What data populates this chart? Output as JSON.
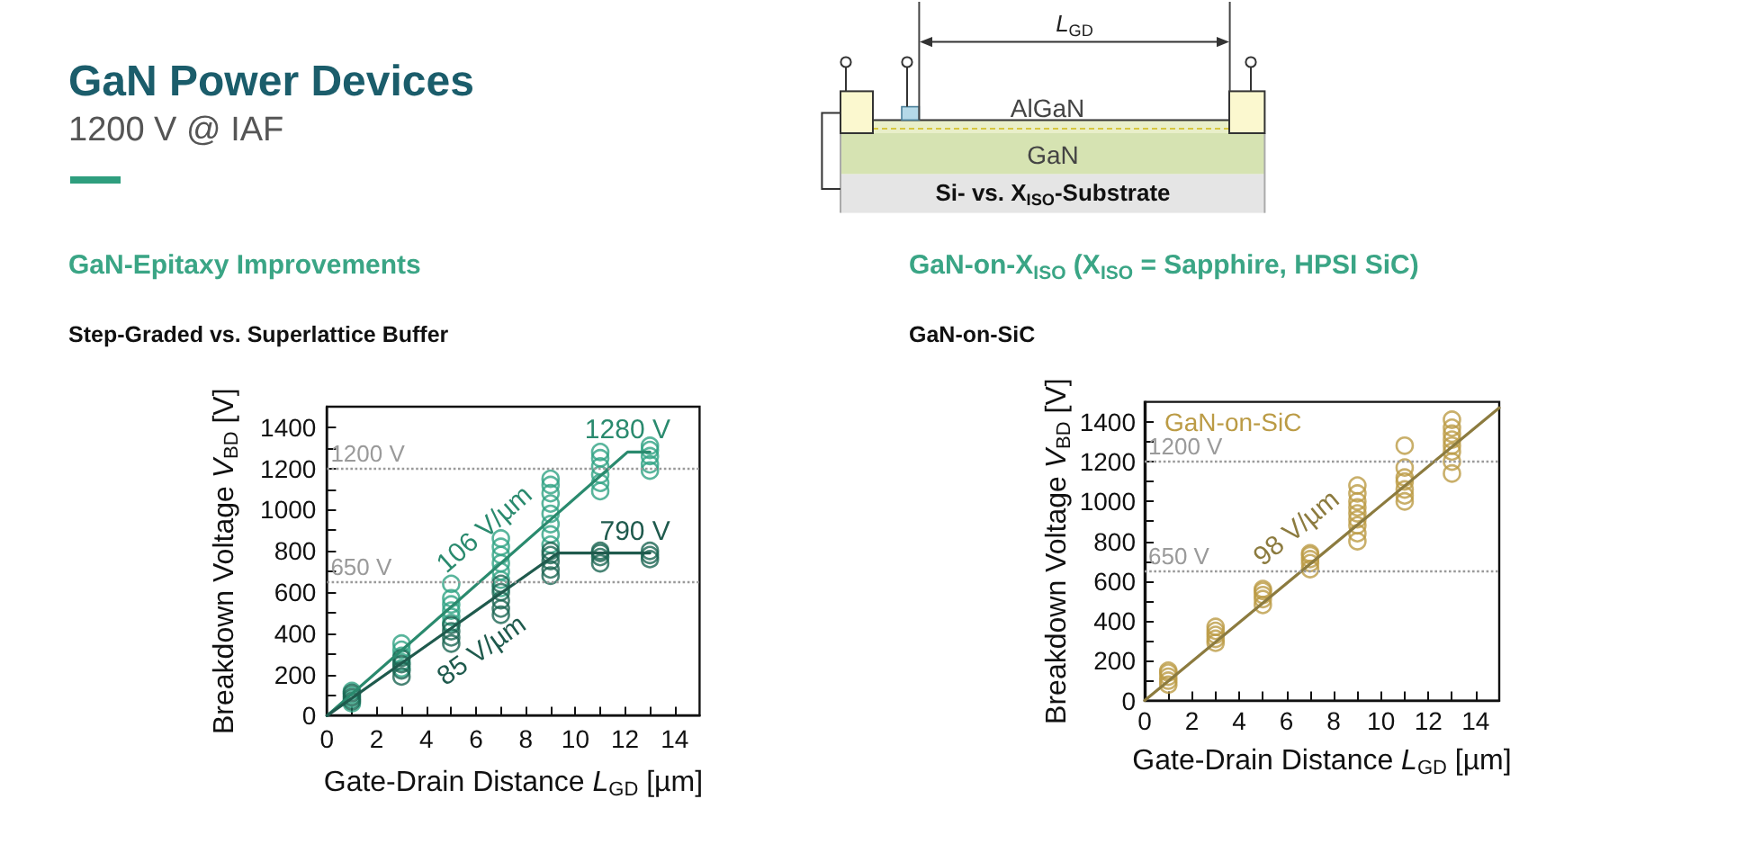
{
  "chart_data": [
    {
      "type": "other",
      "title": "GaN Power Devices",
      "subtitle": "1200 V @ IAF",
      "annotations": [
        "L$_{GD}$",
        "AlGaN",
        "GaN",
        "Si- vs. X$_{ISO}$-Substrate"
      ]
    },
    {
      "type": "scatter",
      "title": "GaN-Epitaxy Improvements",
      "subtitle": "Step-Graded vs. Superlattice Buffer",
      "xlabel": "Gate-Drain Distance L$_{GD}$ [µm]",
      "ylabel": "Breakdown Voltage V$_{BD}$ [V]",
      "xlim": [
        0,
        15
      ],
      "ylim": [
        0,
        1500
      ],
      "xticks": [
        0,
        {
          "value": 1,
          "label": null
        },
        2,
        {
          "value": 3,
          "label": null
        },
        4,
        {
          "value": 5,
          "label": null
        },
        6,
        {
          "value": 7,
          "label": null
        },
        8,
        {
          "value": 9,
          "label": null
        },
        10,
        {
          "value": 11,
          "label": null
        },
        12,
        {
          "value": 13,
          "label": null
        },
        14
      ],
      "yticks": [
        0,
        {
          "value": 100,
          "label": null
        },
        200,
        {
          "value": 300,
          "label": null
        },
        400,
        {
          "value": 500,
          "label": null
        },
        600,
        {
          "value": 700,
          "label": null
        },
        800,
        {
          "value": 900,
          "label": null
        },
        1000,
        {
          "value": 1100,
          "label": null
        },
        1200,
        {
          "value": 1300,
          "label": null
        },
        1400
      ],
      "marker": "circle",
      "series": [
        {
          "color": "#2fa383",
          "x": [
            1,
            1,
            1,
            1,
            3,
            3,
            3,
            3,
            3,
            5,
            5,
            5,
            5,
            5,
            5,
            7,
            7,
            7,
            7,
            7,
            7,
            7,
            9,
            9,
            9,
            9,
            9,
            9,
            9,
            9,
            11,
            11,
            11,
            11,
            11,
            11,
            13,
            13,
            13,
            13,
            13
          ],
          "values": [
            60,
            80,
            100,
            120,
            230,
            260,
            290,
            320,
            350,
            450,
            480,
            510,
            540,
            570,
            640,
            620,
            660,
            700,
            740,
            780,
            820,
            860,
            830,
            880,
            930,
            980,
            1030,
            1080,
            1120,
            1150,
            1090,
            1130,
            1170,
            1210,
            1250,
            1280,
            1190,
            1220,
            1260,
            1290,
            1310
          ]
        },
        {
          "color": "#1c6553",
          "x": [
            1,
            1,
            1,
            3,
            3,
            3,
            3,
            5,
            5,
            5,
            5,
            7,
            7,
            7,
            7,
            7,
            9,
            9,
            9,
            9,
            9,
            11,
            11,
            11,
            11,
            13,
            13,
            13
          ],
          "values": [
            70,
            90,
            110,
            190,
            220,
            250,
            280,
            350,
            380,
            410,
            440,
            490,
            520,
            560,
            600,
            640,
            680,
            710,
            750,
            780,
            800,
            740,
            770,
            790,
            800,
            760,
            780,
            800
          ]
        },
        {
          "type": "line",
          "marker": "none",
          "color": "#2a8a6e",
          "x": [
            0,
            12.1,
            13
          ],
          "values": [
            0,
            1280,
            1280
          ]
        },
        {
          "type": "line",
          "marker": "none",
          "color": "#1f5a4d",
          "x": [
            0,
            9.3,
            13
          ],
          "values": [
            0,
            790,
            790
          ]
        }
      ],
      "ref_lines": [
        {
          "axis": "y",
          "value": 1200,
          "label": "1200 V",
          "color": "#9a9a9a",
          "line_style": "dotted"
        },
        {
          "axis": "y",
          "value": 650,
          "label": "650 V",
          "color": "#9a9a9a",
          "line_style": "dotted"
        }
      ],
      "annotations": [
        {
          "text": "106 V/µm",
          "x": 7.3,
          "y": 772
        },
        {
          "text": "85 V/µm",
          "x": 5.4,
          "y": 459
        },
        {
          "text": "1280 V",
          "x": 12.1,
          "y": 1280
        },
        {
          "text": "790 V",
          "x": 12.4,
          "y": 790
        }
      ]
    },
    {
      "type": "scatter",
      "title": "GaN-on-X$_{ISO}$ (X$_{ISO}$ = Sapphire, HPSI SiC)",
      "subtitle": "GaN-on-SiC",
      "xlabel": "Gate-Drain Distance L$_{GD}$ [µm]",
      "ylabel": "Breakdown Voltage V$_{BD}$ [V]",
      "xlim": [
        0,
        15
      ],
      "ylim": [
        0,
        1500
      ],
      "xticks": [
        0,
        {
          "value": 1,
          "label": null
        },
        2,
        {
          "value": 3,
          "label": null
        },
        4,
        {
          "value": 5,
          "label": null
        },
        6,
        {
          "value": 7,
          "label": null
        },
        8,
        {
          "value": 9,
          "label": null
        },
        10,
        {
          "value": 11,
          "label": null
        },
        12,
        {
          "value": 13,
          "label": null
        },
        14
      ],
      "yticks": [
        0,
        {
          "value": 100,
          "label": null
        },
        200,
        {
          "value": 300,
          "label": null
        },
        400,
        {
          "value": 500,
          "label": null
        },
        600,
        {
          "value": 700,
          "label": null
        },
        800,
        {
          "value": 900,
          "label": null
        },
        1000,
        {
          "value": 1100,
          "label": null
        },
        1200,
        {
          "value": 1300,
          "label": null
        },
        1400
      ],
      "marker": "circle",
      "legend": "top left",
      "series": [
        {
          "name": "GaN-on-SiC",
          "color": "#bb9b45",
          "x": [
            1,
            1,
            1,
            1,
            1,
            3,
            3,
            3,
            3,
            3,
            5,
            5,
            5,
            5,
            5,
            7,
            7,
            7,
            7,
            7,
            9,
            9,
            9,
            9,
            9,
            9,
            9,
            9,
            9,
            11,
            11,
            11,
            11,
            11,
            11,
            11,
            13,
            13,
            13,
            13,
            13,
            13,
            13,
            13
          ],
          "values": [
            80,
            100,
            120,
            140,
            150,
            290,
            310,
            330,
            350,
            370,
            480,
            510,
            530,
            550,
            560,
            660,
            690,
            710,
            730,
            740,
            800,
            840,
            880,
            910,
            940,
            970,
            1000,
            1040,
            1080,
            1000,
            1030,
            1060,
            1100,
            1120,
            1170,
            1280,
            1140,
            1200,
            1250,
            1280,
            1310,
            1340,
            1370,
            1410
          ]
        },
        {
          "type": "line",
          "marker": "none",
          "color": "#8c7b3f",
          "x": [
            0,
            15
          ],
          "values": [
            0,
            1470
          ]
        }
      ],
      "ref_lines": [
        {
          "axis": "y",
          "value": 1200,
          "label": "1200 V",
          "color": "#9a9a9a",
          "line_style": "dotted"
        },
        {
          "axis": "y",
          "value": 650,
          "label": "650 V",
          "color": "#9a9a9a",
          "line_style": "dotted"
        }
      ],
      "annotations": [
        {
          "text": "98 V/µm",
          "x": 7.4,
          "y": 725
        }
      ]
    }
  ]
}
